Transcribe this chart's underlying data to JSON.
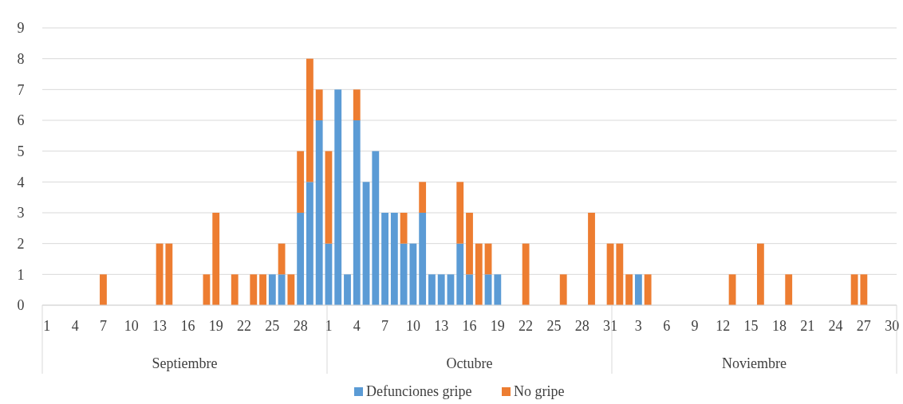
{
  "chart_data": {
    "type": "bar",
    "stacked": true,
    "categories": [
      "1",
      null,
      null,
      "4",
      null,
      null,
      "7",
      null,
      null,
      "10",
      null,
      null,
      "13",
      null,
      null,
      "16",
      null,
      null,
      "19",
      null,
      null,
      "22",
      null,
      null,
      "25",
      null,
      null,
      "28",
      null,
      null,
      "1",
      null,
      null,
      "4",
      null,
      null,
      "7",
      null,
      null,
      "10",
      null,
      null,
      "13",
      null,
      null,
      "16",
      null,
      null,
      "19",
      null,
      null,
      "22",
      null,
      null,
      "25",
      null,
      null,
      "28",
      null,
      null,
      "31",
      null,
      null,
      "3",
      null,
      null,
      "6",
      null,
      null,
      "9",
      null,
      null,
      "12",
      null,
      null,
      "15",
      null,
      null,
      "18",
      null,
      null,
      "21",
      null,
      null,
      "24",
      null,
      null,
      "27",
      null,
      null,
      "30"
    ],
    "series": [
      {
        "name": "Defunciones gripe",
        "color": "#5b9bd5",
        "values": [
          null,
          null,
          null,
          null,
          null,
          null,
          null,
          null,
          null,
          null,
          null,
          null,
          null,
          null,
          null,
          null,
          null,
          null,
          null,
          null,
          null,
          null,
          null,
          null,
          1,
          1,
          null,
          3,
          4,
          6,
          2,
          7,
          1,
          6,
          4,
          5,
          3,
          3,
          2,
          2,
          3,
          1,
          1,
          1,
          2,
          1,
          null,
          1,
          1,
          null,
          null,
          null,
          null,
          null,
          null,
          null,
          null,
          null,
          null,
          null,
          null,
          null,
          null,
          1,
          null,
          null,
          null,
          null,
          null,
          null,
          null,
          null,
          null,
          null,
          null,
          null,
          null,
          null,
          null,
          null,
          null,
          null,
          null,
          null,
          null,
          null,
          null,
          null,
          null,
          null,
          null
        ]
      },
      {
        "name": "No gripe",
        "color": "#ed7d31",
        "values": [
          null,
          null,
          null,
          null,
          null,
          null,
          1,
          null,
          null,
          null,
          null,
          null,
          2,
          2,
          null,
          null,
          null,
          1,
          3,
          null,
          1,
          null,
          1,
          1,
          null,
          1,
          1,
          2,
          4,
          1,
          3,
          null,
          null,
          1,
          null,
          null,
          null,
          null,
          1,
          null,
          1,
          null,
          null,
          null,
          2,
          2,
          2,
          1,
          null,
          null,
          null,
          2,
          null,
          null,
          null,
          1,
          null,
          null,
          3,
          null,
          2,
          2,
          1,
          null,
          1,
          null,
          null,
          null,
          null,
          null,
          null,
          null,
          null,
          1,
          null,
          null,
          2,
          null,
          null,
          1,
          null,
          null,
          null,
          null,
          null,
          null,
          1,
          1,
          null,
          null,
          null
        ]
      }
    ],
    "ylim": [
      0,
      9
    ],
    "yticks": [
      0,
      1,
      2,
      3,
      4,
      5,
      6,
      7,
      8,
      9
    ],
    "grid": "y",
    "legend": "bottom",
    "annotations": [
      "Septiembre",
      "Octubre",
      "Noviembre"
    ]
  }
}
